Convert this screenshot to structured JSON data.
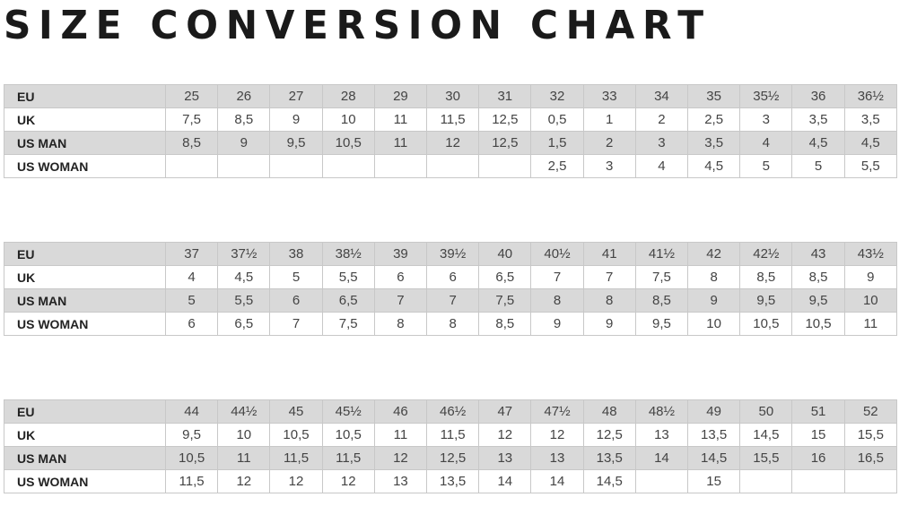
{
  "title": "SIZE CONVERSION CHART",
  "colors": {
    "shaded_row": "#d9d9d9",
    "border": "#c8c8c8"
  },
  "tables": [
    {
      "rows": [
        {
          "label": "EU",
          "values": [
            "25",
            "26",
            "27",
            "28",
            "29",
            "30",
            "31",
            "32",
            "33",
            "34",
            "35",
            "35½",
            "36",
            "36½"
          ]
        },
        {
          "label": "UK",
          "values": [
            "7,5",
            "8,5",
            "9",
            "10",
            "11",
            "11,5",
            "12,5",
            "0,5",
            "1",
            "2",
            "2,5",
            "3",
            "3,5",
            "3,5"
          ]
        },
        {
          "label": "US MAN",
          "values": [
            "8,5",
            "9",
            "9,5",
            "10,5",
            "11",
            "12",
            "12,5",
            "1,5",
            "2",
            "3",
            "3,5",
            "4",
            "4,5",
            "4,5"
          ]
        },
        {
          "label": "US WOMAN",
          "values": [
            "",
            "",
            "",
            "",
            "",
            "",
            "",
            "2,5",
            "3",
            "4",
            "4,5",
            "5",
            "5",
            "5,5"
          ]
        }
      ]
    },
    {
      "rows": [
        {
          "label": "EU",
          "values": [
            "37",
            "37½",
            "38",
            "38½",
            "39",
            "39½",
            "40",
            "40½",
            "41",
            "41½",
            "42",
            "42½",
            "43",
            "43½"
          ]
        },
        {
          "label": "UK",
          "values": [
            "4",
            "4,5",
            "5",
            "5,5",
            "6",
            "6",
            "6,5",
            "7",
            "7",
            "7,5",
            "8",
            "8,5",
            "8,5",
            "9"
          ]
        },
        {
          "label": "US MAN",
          "values": [
            "5",
            "5,5",
            "6",
            "6,5",
            "7",
            "7",
            "7,5",
            "8",
            "8",
            "8,5",
            "9",
            "9,5",
            "9,5",
            "10"
          ]
        },
        {
          "label": "US WOMAN",
          "values": [
            "6",
            "6,5",
            "7",
            "7,5",
            "8",
            "8",
            "8,5",
            "9",
            "9",
            "9,5",
            "10",
            "10,5",
            "10,5",
            "11"
          ]
        }
      ]
    },
    {
      "rows": [
        {
          "label": "EU",
          "values": [
            "44",
            "44½",
            "45",
            "45½",
            "46",
            "46½",
            "47",
            "47½",
            "48",
            "48½",
            "49",
            "50",
            "51",
            "52"
          ]
        },
        {
          "label": "UK",
          "values": [
            "9,5",
            "10",
            "10,5",
            "10,5",
            "11",
            "11,5",
            "12",
            "12",
            "12,5",
            "13",
            "13,5",
            "14,5",
            "15",
            "15,5"
          ]
        },
        {
          "label": "US MAN",
          "values": [
            "10,5",
            "11",
            "11,5",
            "11,5",
            "12",
            "12,5",
            "13",
            "13",
            "13,5",
            "14",
            "14,5",
            "15,5",
            "16",
            "16,5"
          ]
        },
        {
          "label": "US WOMAN",
          "values": [
            "11,5",
            "12",
            "12",
            "12",
            "13",
            "13,5",
            "14",
            "14",
            "14,5",
            "",
            "15",
            "",
            "",
            ""
          ]
        }
      ]
    }
  ]
}
